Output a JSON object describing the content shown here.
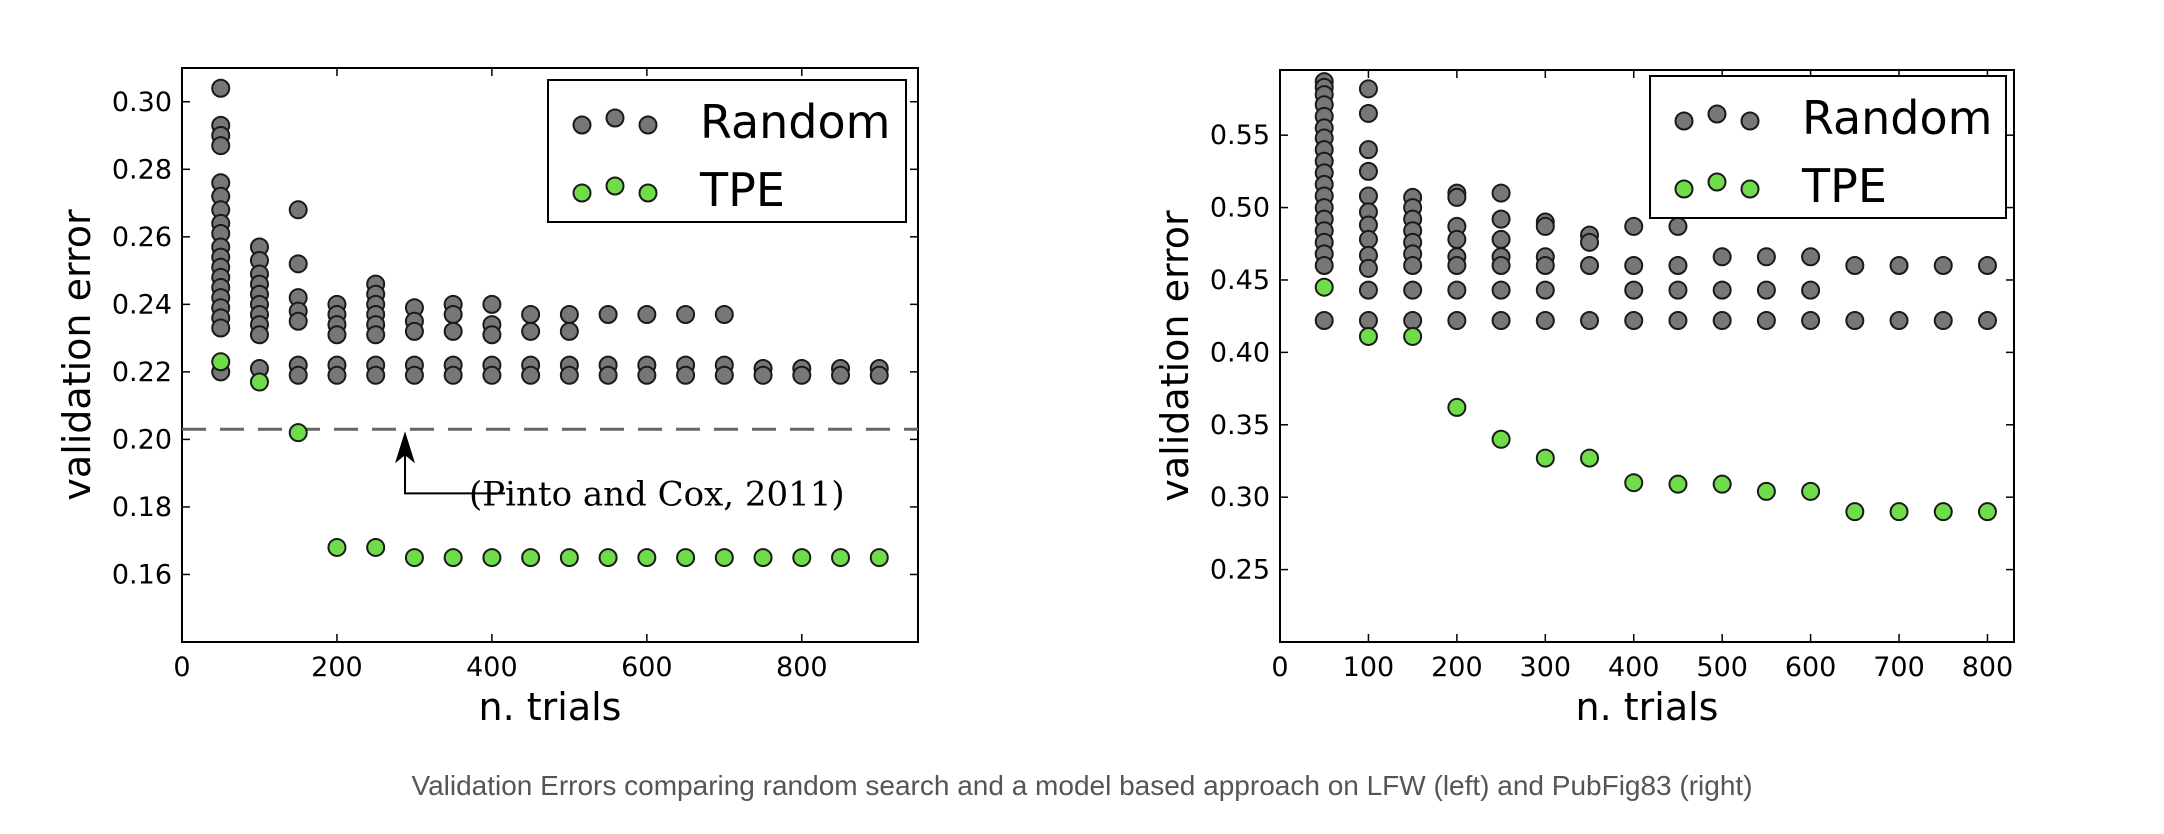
{
  "caption": "Validation Errors comparing random search and a model based approach on LFW (left) and PubFig83 (right)",
  "colors": {
    "random": "#777777",
    "tpe": "#6fdc4a",
    "edge": "#1a1a1a",
    "dash": "#666666"
  },
  "chart_data": [
    {
      "type": "scatter",
      "xlabel": "n. trials",
      "ylabel": "validation error",
      "xlim": [
        0,
        950
      ],
      "ylim": [
        0.14,
        0.31
      ],
      "xticks": [
        "0",
        "200",
        "400",
        "600",
        "800"
      ],
      "yticks": [
        "0.16",
        "0.18",
        "0.20",
        "0.22",
        "0.24",
        "0.26",
        "0.28",
        "0.30"
      ],
      "legend": {
        "position": "top-right",
        "entries": [
          "Random",
          "TPE"
        ]
      },
      "reference_line": {
        "y": 0.203,
        "label": "(Pinto and Cox, 2011)"
      },
      "series": [
        {
          "name": "Random",
          "points": [
            [
              50,
              0.304
            ],
            [
              50,
              0.293
            ],
            [
              50,
              0.29
            ],
            [
              50,
              0.287
            ],
            [
              50,
              0.276
            ],
            [
              50,
              0.272
            ],
            [
              50,
              0.268
            ],
            [
              50,
              0.264
            ],
            [
              50,
              0.261
            ],
            [
              50,
              0.257
            ],
            [
              50,
              0.254
            ],
            [
              50,
              0.251
            ],
            [
              50,
              0.248
            ],
            [
              50,
              0.245
            ],
            [
              50,
              0.242
            ],
            [
              50,
              0.239
            ],
            [
              50,
              0.236
            ],
            [
              50,
              0.233
            ],
            [
              50,
              0.22
            ],
            [
              100,
              0.257
            ],
            [
              100,
              0.253
            ],
            [
              100,
              0.249
            ],
            [
              100,
              0.246
            ],
            [
              100,
              0.243
            ],
            [
              100,
              0.24
            ],
            [
              100,
              0.237
            ],
            [
              100,
              0.234
            ],
            [
              100,
              0.231
            ],
            [
              100,
              0.221
            ],
            [
              150,
              0.268
            ],
            [
              150,
              0.252
            ],
            [
              150,
              0.242
            ],
            [
              150,
              0.238
            ],
            [
              150,
              0.235
            ],
            [
              150,
              0.222
            ],
            [
              150,
              0.219
            ],
            [
              200,
              0.24
            ],
            [
              200,
              0.237
            ],
            [
              200,
              0.234
            ],
            [
              200,
              0.231
            ],
            [
              200,
              0.222
            ],
            [
              200,
              0.219
            ],
            [
              250,
              0.246
            ],
            [
              250,
              0.243
            ],
            [
              250,
              0.24
            ],
            [
              250,
              0.237
            ],
            [
              250,
              0.234
            ],
            [
              250,
              0.231
            ],
            [
              250,
              0.222
            ],
            [
              250,
              0.219
            ],
            [
              300,
              0.239
            ],
            [
              300,
              0.235
            ],
            [
              300,
              0.232
            ],
            [
              300,
              0.222
            ],
            [
              300,
              0.219
            ],
            [
              350,
              0.24
            ],
            [
              350,
              0.237
            ],
            [
              350,
              0.232
            ],
            [
              350,
              0.222
            ],
            [
              350,
              0.219
            ],
            [
              400,
              0.24
            ],
            [
              400,
              0.234
            ],
            [
              400,
              0.231
            ],
            [
              400,
              0.222
            ],
            [
              400,
              0.219
            ],
            [
              450,
              0.237
            ],
            [
              450,
              0.232
            ],
            [
              450,
              0.222
            ],
            [
              450,
              0.219
            ],
            [
              500,
              0.237
            ],
            [
              500,
              0.232
            ],
            [
              500,
              0.222
            ],
            [
              500,
              0.219
            ],
            [
              550,
              0.237
            ],
            [
              550,
              0.222
            ],
            [
              550,
              0.219
            ],
            [
              600,
              0.237
            ],
            [
              600,
              0.222
            ],
            [
              600,
              0.219
            ],
            [
              650,
              0.237
            ],
            [
              650,
              0.222
            ],
            [
              650,
              0.219
            ],
            [
              700,
              0.237
            ],
            [
              700,
              0.222
            ],
            [
              700,
              0.219
            ],
            [
              750,
              0.221
            ],
            [
              750,
              0.219
            ],
            [
              800,
              0.221
            ],
            [
              800,
              0.219
            ],
            [
              850,
              0.221
            ],
            [
              850,
              0.219
            ],
            [
              900,
              0.221
            ],
            [
              900,
              0.219
            ]
          ]
        },
        {
          "name": "TPE",
          "points": [
            [
              50,
              0.223
            ],
            [
              100,
              0.217
            ],
            [
              150,
              0.202
            ],
            [
              200,
              0.168
            ],
            [
              250,
              0.168
            ],
            [
              300,
              0.165
            ],
            [
              350,
              0.165
            ],
            [
              400,
              0.165
            ],
            [
              450,
              0.165
            ],
            [
              500,
              0.165
            ],
            [
              550,
              0.165
            ],
            [
              600,
              0.165
            ],
            [
              650,
              0.165
            ],
            [
              700,
              0.165
            ],
            [
              750,
              0.165
            ],
            [
              800,
              0.165
            ],
            [
              850,
              0.165
            ],
            [
              900,
              0.165
            ]
          ]
        }
      ]
    },
    {
      "type": "scatter",
      "xlabel": "n. trials",
      "ylabel": "validation error",
      "xlim": [
        0,
        830
      ],
      "ylim": [
        0.2,
        0.595
      ],
      "xticks": [
        "0",
        "100",
        "200",
        "300",
        "400",
        "500",
        "600",
        "700",
        "800"
      ],
      "yticks": [
        "0.25",
        "0.30",
        "0.35",
        "0.40",
        "0.45",
        "0.50",
        "0.55"
      ],
      "legend": {
        "position": "top-right",
        "entries": [
          "Random",
          "TPE"
        ]
      },
      "series": [
        {
          "name": "Random",
          "points": [
            [
              50,
              0.587
            ],
            [
              50,
              0.583
            ],
            [
              50,
              0.578
            ],
            [
              50,
              0.571
            ],
            [
              50,
              0.563
            ],
            [
              50,
              0.555
            ],
            [
              50,
              0.548
            ],
            [
              50,
              0.54
            ],
            [
              50,
              0.532
            ],
            [
              50,
              0.524
            ],
            [
              50,
              0.516
            ],
            [
              50,
              0.508
            ],
            [
              50,
              0.5
            ],
            [
              50,
              0.492
            ],
            [
              50,
              0.484
            ],
            [
              50,
              0.476
            ],
            [
              50,
              0.468
            ],
            [
              50,
              0.46
            ],
            [
              50,
              0.422
            ],
            [
              100,
              0.582
            ],
            [
              100,
              0.565
            ],
            [
              100,
              0.54
            ],
            [
              100,
              0.525
            ],
            [
              100,
              0.508
            ],
            [
              100,
              0.497
            ],
            [
              100,
              0.488
            ],
            [
              100,
              0.478
            ],
            [
              100,
              0.467
            ],
            [
              100,
              0.458
            ],
            [
              100,
              0.443
            ],
            [
              100,
              0.422
            ],
            [
              150,
              0.507
            ],
            [
              150,
              0.5
            ],
            [
              150,
              0.492
            ],
            [
              150,
              0.484
            ],
            [
              150,
              0.476
            ],
            [
              150,
              0.468
            ],
            [
              150,
              0.46
            ],
            [
              150,
              0.443
            ],
            [
              150,
              0.422
            ],
            [
              200,
              0.51
            ],
            [
              200,
              0.507
            ],
            [
              200,
              0.487
            ],
            [
              200,
              0.478
            ],
            [
              200,
              0.466
            ],
            [
              200,
              0.46
            ],
            [
              200,
              0.443
            ],
            [
              200,
              0.422
            ],
            [
              250,
              0.51
            ],
            [
              250,
              0.492
            ],
            [
              250,
              0.478
            ],
            [
              250,
              0.466
            ],
            [
              250,
              0.46
            ],
            [
              250,
              0.443
            ],
            [
              250,
              0.422
            ],
            [
              300,
              0.49
            ],
            [
              300,
              0.487
            ],
            [
              300,
              0.466
            ],
            [
              300,
              0.46
            ],
            [
              300,
              0.443
            ],
            [
              300,
              0.422
            ],
            [
              350,
              0.481
            ],
            [
              350,
              0.476
            ],
            [
              350,
              0.46
            ],
            [
              350,
              0.422
            ],
            [
              400,
              0.487
            ],
            [
              400,
              0.46
            ],
            [
              400,
              0.443
            ],
            [
              400,
              0.422
            ],
            [
              450,
              0.487
            ],
            [
              450,
              0.46
            ],
            [
              450,
              0.443
            ],
            [
              450,
              0.422
            ],
            [
              500,
              0.466
            ],
            [
              500,
              0.443
            ],
            [
              500,
              0.422
            ],
            [
              550,
              0.466
            ],
            [
              550,
              0.443
            ],
            [
              550,
              0.422
            ],
            [
              600,
              0.466
            ],
            [
              600,
              0.443
            ],
            [
              600,
              0.422
            ],
            [
              650,
              0.46
            ],
            [
              650,
              0.422
            ],
            [
              700,
              0.46
            ],
            [
              700,
              0.422
            ],
            [
              750,
              0.46
            ],
            [
              750,
              0.422
            ],
            [
              800,
              0.46
            ],
            [
              800,
              0.422
            ]
          ]
        },
        {
          "name": "TPE",
          "points": [
            [
              50,
              0.445
            ],
            [
              100,
              0.411
            ],
            [
              150,
              0.411
            ],
            [
              200,
              0.362
            ],
            [
              250,
              0.34
            ],
            [
              300,
              0.327
            ],
            [
              350,
              0.327
            ],
            [
              400,
              0.31
            ],
            [
              450,
              0.309
            ],
            [
              500,
              0.309
            ],
            [
              550,
              0.304
            ],
            [
              600,
              0.304
            ],
            [
              650,
              0.29
            ],
            [
              700,
              0.29
            ],
            [
              750,
              0.29
            ],
            [
              800,
              0.29
            ]
          ]
        }
      ]
    }
  ]
}
